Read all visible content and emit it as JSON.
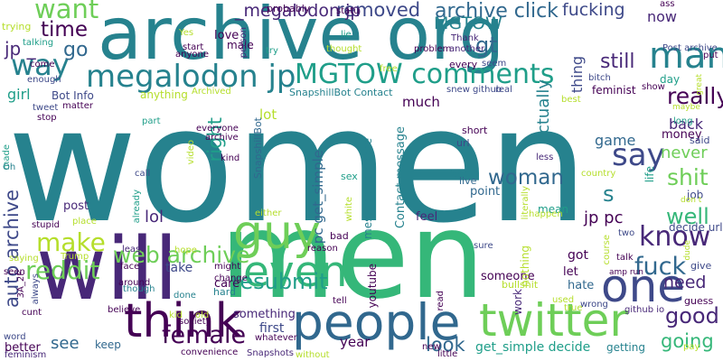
{
  "palette": {
    "c1": "#440154",
    "c2": "#482878",
    "c3": "#3e4989",
    "c4": "#31688e",
    "c5": "#26828e",
    "c6": "#1f9e89",
    "c7": "#35b779",
    "c8": "#6ece58",
    "c9": "#b5de2b",
    "c10": "#fde725"
  },
  "words": [
    {
      "text": "women",
      "color": "#26828e"
    },
    {
      "text": "men",
      "color": "#35b779"
    },
    {
      "text": "archive org",
      "color": "#26828e"
    },
    {
      "text": "will",
      "color": "#482878"
    },
    {
      "text": "people",
      "color": "#31688e"
    },
    {
      "text": "twitter",
      "color": "#6ece58"
    },
    {
      "text": "guy",
      "color": "#6ece58"
    },
    {
      "text": "think",
      "color": "#440154"
    },
    {
      "text": "one",
      "color": "#3e4989"
    },
    {
      "text": "even",
      "color": "#35b779"
    },
    {
      "text": "man",
      "color": "#26828e"
    },
    {
      "text": "megalodon jp",
      "color": "#26828e"
    },
    {
      "text": "MGTOW comments",
      "color": "#1f9e89"
    },
    {
      "text": "way",
      "color": "#26828e"
    },
    {
      "text": "want",
      "color": "#6ece58"
    },
    {
      "text": "say",
      "color": "#3e4989"
    },
    {
      "text": "know",
      "color": "#482878"
    },
    {
      "text": "make",
      "color": "#b5de2b"
    },
    {
      "text": "reddit",
      "color": "#6ece58"
    },
    {
      "text": "web archive",
      "color": "#6ece58"
    },
    {
      "text": "auto archive",
      "color": "#3e4989"
    },
    {
      "text": "resubmit",
      "color": "#1f9e89"
    },
    {
      "text": "female",
      "color": "#440154"
    },
    {
      "text": "fuck",
      "color": "#31688e"
    },
    {
      "text": "time",
      "color": "#440154"
    },
    {
      "text": "woman",
      "color": "#31688e"
    },
    {
      "text": "really",
      "color": "#440154"
    },
    {
      "text": "shit",
      "color": "#6ece58"
    },
    {
      "text": "well",
      "color": "#35b779"
    },
    {
      "text": "good",
      "color": "#482878"
    },
    {
      "text": "need",
      "color": "#482878"
    },
    {
      "text": "going",
      "color": "#35b779"
    },
    {
      "text": "look",
      "color": "#31688e"
    },
    {
      "text": "right",
      "color": "#1f9e89"
    },
    {
      "text": "still",
      "color": "#482878"
    },
    {
      "text": "archive click",
      "color": "#31688e"
    },
    {
      "text": "fucking",
      "color": "#3e4989"
    },
    {
      "text": "removed",
      "color": "#3e4989"
    },
    {
      "text": "_megalodon jp",
      "color": "#482878"
    },
    {
      "text": "MGTOW",
      "color": "#26828e"
    },
    {
      "text": "gt",
      "color": "#31688e"
    },
    {
      "text": "go",
      "color": "#31688e"
    },
    {
      "text": "jp _",
      "color": "#482878"
    },
    {
      "text": "s",
      "color": "#26828e"
    },
    {
      "text": "lol",
      "color": "#482878"
    },
    {
      "text": "see",
      "color": "#31688e"
    },
    {
      "text": "actually",
      "color": "#26828e"
    },
    {
      "text": "thing",
      "color": "#3e4989"
    },
    {
      "text": "never",
      "color": "#6ece58"
    },
    {
      "text": "back",
      "color": "#482878"
    },
    {
      "text": "now",
      "color": "#482878"
    },
    {
      "text": "game",
      "color": "#31688e"
    },
    {
      "text": "year",
      "color": "#440154"
    },
    {
      "text": "jp pc",
      "color": "#440154"
    },
    {
      "text": "pc get_simple",
      "color": "#31688e"
    },
    {
      "text": "get_simple decide",
      "color": "#1f9e89"
    },
    {
      "text": "girl",
      "color": "#1f9e89"
    },
    {
      "text": "much",
      "color": "#440154"
    },
    {
      "text": "lot",
      "color": "#b5de2b"
    },
    {
      "text": "keep",
      "color": "#31688e"
    },
    {
      "text": "first",
      "color": "#3e4989"
    },
    {
      "text": "post",
      "color": "#482878"
    },
    {
      "text": "feel",
      "color": "#482878"
    },
    {
      "text": "mean",
      "color": "#1f9e89"
    },
    {
      "text": "youtube",
      "color": "#440154"
    },
    {
      "text": "point",
      "color": "#31688e"
    },
    {
      "text": "Contact message",
      "color": "#26828e"
    },
    {
      "text": "message compose",
      "color": "#26828e"
    },
    {
      "text": "Bot Info",
      "color": "#3e4989"
    },
    {
      "text": "anything",
      "color": "#b5de2b"
    },
    {
      "text": "SnapshillBot",
      "color": "#31688e"
    },
    {
      "text": "SnapshillBot Contact",
      "color": "#26828e"
    },
    {
      "text": "work",
      "color": "#482878"
    },
    {
      "text": "let",
      "color": "#440154"
    },
    {
      "text": "got",
      "color": "#440154"
    },
    {
      "text": "hate",
      "color": "#31688e"
    },
    {
      "text": "someone",
      "color": "#440154"
    },
    {
      "text": "take",
      "color": "#3e4989"
    },
    {
      "text": "care",
      "color": "#440154"
    },
    {
      "text": "hard",
      "color": "#26828e"
    },
    {
      "text": "something",
      "color": "#482878"
    },
    {
      "text": "bad",
      "color": "#440154"
    },
    {
      "text": "money",
      "color": "#440154"
    },
    {
      "text": "said",
      "color": "#3e4989"
    },
    {
      "text": "job",
      "color": "#3e4989"
    },
    {
      "text": "give",
      "color": "#3e4989"
    },
    {
      "text": "decide url",
      "color": "#3e4989"
    },
    {
      "text": "feminist",
      "color": "#440154"
    },
    {
      "text": "life",
      "color": "#1f9e89"
    },
    {
      "text": "love",
      "color": "#440154"
    },
    {
      "text": "male",
      "color": "#440154"
    },
    {
      "text": "probably",
      "color": "#440154"
    },
    {
      "text": "trying",
      "color": "#b5de2b"
    },
    {
      "text": "Archived",
      "color": "#b5de2b"
    },
    {
      "text": "day",
      "color": "#1f9e89"
    },
    {
      "text": "sex",
      "color": "#1f9e89"
    },
    {
      "text": "url",
      "color": "#3e4989"
    },
    {
      "text": "Yeah",
      "color": "#26828e"
    },
    {
      "text": "live",
      "color": "#31688e"
    },
    {
      "text": "short",
      "color": "#440154"
    },
    {
      "text": "literally",
      "color": "#b5de2b"
    },
    {
      "text": "nothing",
      "color": "#b5de2b"
    },
    {
      "text": "bullshit",
      "color": "#b5de2b"
    },
    {
      "text": "used",
      "color": "#b5de2b"
    },
    {
      "text": "true",
      "color": "#b5de2b"
    },
    {
      "text": "wrong",
      "color": "#3e4989"
    },
    {
      "text": "github io",
      "color": "#482878"
    },
    {
      "text": "getting",
      "color": "#26828e"
    },
    {
      "text": "guess",
      "color": "#440154"
    },
    {
      "text": "amp run",
      "color": "#440154"
    },
    {
      "text": "talk",
      "color": "#440154"
    },
    {
      "text": "two",
      "color": "#3e4989"
    },
    {
      "text": "course",
      "color": "#b5de2b"
    },
    {
      "text": "dude",
      "color": "#b5de2b"
    },
    {
      "text": "best",
      "color": "#b5de2b"
    },
    {
      "text": "show",
      "color": "#440154"
    },
    {
      "text": "maybe",
      "color": "#b5de2b"
    },
    {
      "text": "long",
      "color": "#1f9e89"
    },
    {
      "text": "put",
      "color": "#440154"
    },
    {
      "text": "bitch",
      "color": "#3e4989"
    },
    {
      "text": "Post archive",
      "color": "#3e4989"
    },
    {
      "text": "great",
      "color": "#b5de2b"
    },
    {
      "text": "ass",
      "color": "#440154"
    },
    {
      "text": "country",
      "color": "#b5de2b"
    },
    {
      "text": "don t",
      "color": "#b5de2b"
    },
    {
      "text": "less",
      "color": "#482878"
    },
    {
      "text": "snew github",
      "color": "#3e4989"
    },
    {
      "text": "real",
      "color": "#3e4989"
    },
    {
      "text": "every",
      "color": "#440154"
    },
    {
      "text": "seem",
      "color": "#3e4989"
    },
    {
      "text": "problem",
      "color": "#440154"
    },
    {
      "text": "Thank",
      "color": "#482878"
    },
    {
      "text": "another",
      "color": "#482878"
    },
    {
      "text": "thought",
      "color": "#b5de2b"
    },
    {
      "text": "try",
      "color": "#1f9e89"
    },
    {
      "text": "free",
      "color": "#b5de2b"
    },
    {
      "text": "lie",
      "color": "#1f9e89"
    },
    {
      "text": "statu",
      "color": "#440154"
    },
    {
      "text": "person",
      "color": "#482878"
    },
    {
      "text": "Yes",
      "color": "#b5de2b"
    },
    {
      "text": "start",
      "color": "#440154"
    },
    {
      "text": "anyone",
      "color": "#440154"
    },
    {
      "text": "talking",
      "color": "#1f9e89"
    },
    {
      "text": "come",
      "color": "#440154"
    },
    {
      "text": "enough",
      "color": "#3e4989"
    },
    {
      "text": "tweet",
      "color": "#3e4989"
    },
    {
      "text": "stop",
      "color": "#440154"
    },
    {
      "text": "matter",
      "color": "#440154"
    },
    {
      "text": "part",
      "color": "#1f9e89"
    },
    {
      "text": "everyone",
      "color": "#440154"
    },
    {
      "text": "archive",
      "color": "#440154"
    },
    {
      "text": "kind",
      "color": "#440154"
    },
    {
      "text": "video",
      "color": "#b5de2b"
    },
    {
      "text": "made",
      "color": "#1f9e89"
    },
    {
      "text": "Oh",
      "color": "#26828e"
    },
    {
      "text": "call",
      "color": "#3e4989"
    },
    {
      "text": "already",
      "color": "#1f9e89"
    },
    {
      "text": "either",
      "color": "#b5de2b"
    },
    {
      "text": "white",
      "color": "#b5de2b"
    },
    {
      "text": "stupid",
      "color": "#440154"
    },
    {
      "text": "place",
      "color": "#b5de2b"
    },
    {
      "text": "saying",
      "color": "#b5de2b"
    },
    {
      "text": "Trump",
      "color": "#b5de2b"
    },
    {
      "text": "least",
      "color": "#482878"
    },
    {
      "text": "hope",
      "color": "#b5de2b"
    },
    {
      "text": "reason",
      "color": "#440154"
    },
    {
      "text": "face",
      "color": "#440154"
    },
    {
      "text": "might",
      "color": "#440154"
    },
    {
      "text": "change",
      "color": "#440154"
    },
    {
      "text": "around",
      "color": "#440154"
    },
    {
      "text": "though",
      "color": "#26828e"
    },
    {
      "text": "done",
      "color": "#26828e"
    },
    {
      "text": "seen",
      "color": "#440154"
    },
    {
      "text": "3A_2F",
      "color": "#440154"
    },
    {
      "text": "always",
      "color": "#3e4989"
    },
    {
      "text": "cunt",
      "color": "#440154"
    },
    {
      "text": "word",
      "color": "#3e4989"
    },
    {
      "text": "believe",
      "color": "#440154"
    },
    {
      "text": "kid",
      "color": "#b5de2b"
    },
    {
      "text": "society",
      "color": "#440154"
    },
    {
      "text": "old",
      "color": "#b5de2b"
    },
    {
      "text": "whatever",
      "color": "#440154"
    },
    {
      "text": "Snapshots",
      "color": "#482878"
    },
    {
      "text": "convenience",
      "color": "#440154"
    },
    {
      "text": "feminism",
      "color": "#482878"
    },
    {
      "text": "without",
      "color": "#b5de2b"
    },
    {
      "text": "tell",
      "color": "#440154"
    },
    {
      "text": "read",
      "color": "#440154"
    },
    {
      "text": "new",
      "color": "#440154"
    },
    {
      "text": "little",
      "color": "#440154"
    },
    {
      "text": "happen",
      "color": "#b5de2b"
    },
    {
      "text": "sure",
      "color": "#3e4989"
    },
    {
      "text": "pay",
      "color": "#b5de2b"
    },
    {
      "text": "better",
      "color": "#440154"
    }
  ]
}
